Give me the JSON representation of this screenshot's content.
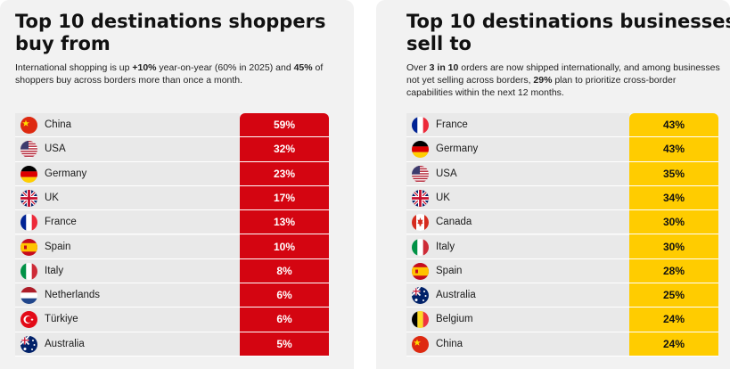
{
  "left": {
    "title": "Top 10 destinations shoppers buy from",
    "subtitle_parts": [
      {
        "text": "International shopping is up ",
        "bold": false
      },
      {
        "text": "+10%",
        "bold": true
      },
      {
        "text": " year-on-year (60% in 2025) and ",
        "bold": false
      },
      {
        "text": "45%",
        "bold": true
      },
      {
        "text": " of shoppers buy across borders more than once a month.",
        "bold": false
      }
    ]
  },
  "right": {
    "title": "Top 10 destinations businesses sell to",
    "subtitle_parts": [
      {
        "text": "Over ",
        "bold": false
      },
      {
        "text": "3 in 10",
        "bold": true
      },
      {
        "text": " orders are now shipped internationally, and among businesses not yet selling across borders, ",
        "bold": false
      },
      {
        "text": "29%",
        "bold": true
      },
      {
        "text": " plan to prioritize cross-border capabilities within the next 12 months.",
        "bold": false
      }
    ]
  },
  "colors": {
    "left_accent": "#d40511",
    "right_accent": "#ffcc00"
  },
  "chart_data": [
    {
      "type": "table",
      "title": "Top 10 destinations shoppers buy from",
      "categories": [
        "China",
        "USA",
        "Germany",
        "UK",
        "France",
        "Spain",
        "Italy",
        "Netherlands",
        "Türkiye",
        "Australia"
      ],
      "flags": [
        "cn-flag-icon",
        "us-flag-icon",
        "de-flag-icon",
        "uk-flag-icon",
        "fr-flag-icon",
        "es-flag-icon",
        "it-flag-icon",
        "nl-flag-icon",
        "tr-flag-icon",
        "au-flag-icon"
      ],
      "values": [
        "59%",
        "32%",
        "23%",
        "17%",
        "13%",
        "10%",
        "8%",
        "6%",
        "6%",
        "5%"
      ]
    },
    {
      "type": "table",
      "title": "Top 10 destinations businesses sell to",
      "categories": [
        "France",
        "Germany",
        "USA",
        "UK",
        "Canada",
        "Italy",
        "Spain",
        "Australia",
        "Belgium",
        "China"
      ],
      "flags": [
        "fr-flag-icon",
        "de-flag-icon",
        "us-flag-icon",
        "uk-flag-icon",
        "ca-flag-icon",
        "it-flag-icon",
        "es-flag-icon",
        "au-flag-icon",
        "be-flag-icon",
        "cn-flag-icon"
      ],
      "values": [
        "43%",
        "43%",
        "35%",
        "34%",
        "30%",
        "30%",
        "28%",
        "25%",
        "24%",
        "24%"
      ]
    }
  ]
}
